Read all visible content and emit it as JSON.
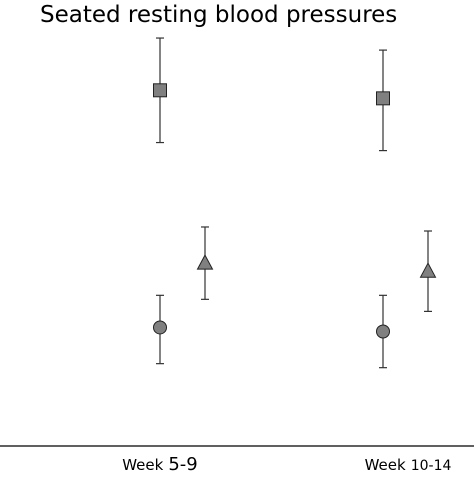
{
  "chart_data": {
    "type": "scatter",
    "title": "Seated resting blood pressures",
    "xlabel": "",
    "ylabel": "",
    "categories": [
      "Week 5-9",
      "Week 10-14"
    ],
    "category_label_parts": [
      {
        "word": "Week",
        "num": "5-9"
      },
      {
        "word": "Week",
        "num": "10-14"
      }
    ],
    "ylim": [
      0,
      100
    ],
    "grid": false,
    "series": [
      {
        "marker": "square",
        "color": "#808080",
        "points": [
          {
            "category": "Week 5-9",
            "value": 85,
            "low": 72,
            "high": 98
          },
          {
            "category": "Week 10-14",
            "value": 83,
            "low": 70,
            "high": 95
          }
        ]
      },
      {
        "marker": "triangle",
        "color": "#808080",
        "points": [
          {
            "category": "Week 5-9",
            "value": 42,
            "low": 33,
            "high": 51
          },
          {
            "category": "Week 10-14",
            "value": 40,
            "low": 30,
            "high": 50
          }
        ]
      },
      {
        "marker": "circle",
        "color": "#808080",
        "points": [
          {
            "category": "Week 5-9",
            "value": 26,
            "low": 17,
            "high": 34
          },
          {
            "category": "Week 10-14",
            "value": 25,
            "low": 16,
            "high": 34
          }
        ]
      }
    ]
  }
}
